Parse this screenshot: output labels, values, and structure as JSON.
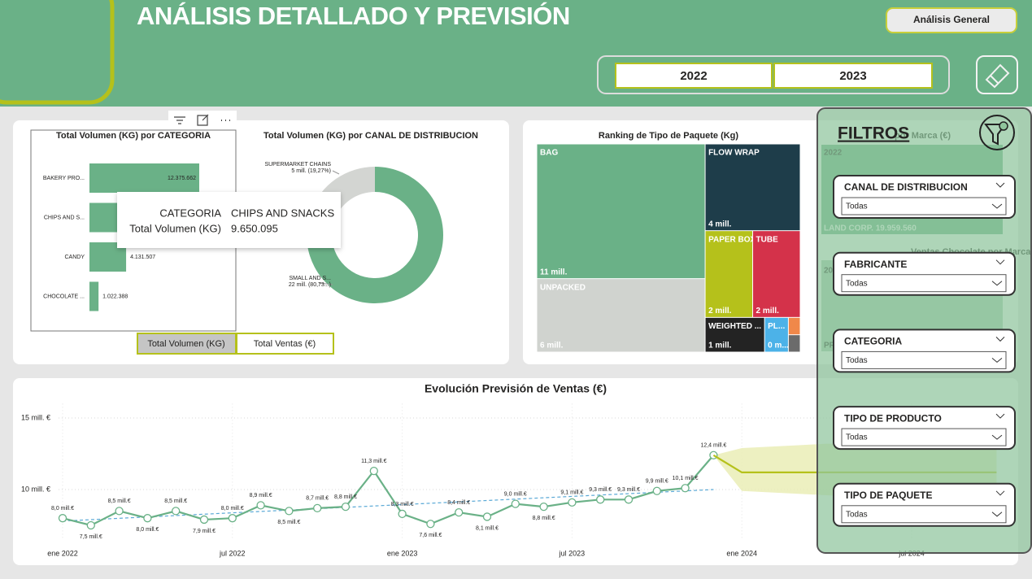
{
  "header": {
    "title": "ANÁLISIS DETALLADO Y PREVISIÓN",
    "nav_button": "Análisis General",
    "year_buttons": [
      "2022",
      "2023"
    ]
  },
  "chart_data": [
    {
      "type": "bar",
      "orientation": "horizontal",
      "title": "Total Volumen (KG) por CATEGORIA",
      "categories": [
        "BAKERY PRO...",
        "CHIPS AND S...",
        "CANDY",
        "CHOCOLATE ..."
      ],
      "values": [
        12375662,
        9650095,
        4131507,
        1022388
      ],
      "value_labels": [
        "12.375.662",
        null,
        "4.131.507",
        "1.022.388"
      ],
      "color": "#6ab187"
    },
    {
      "type": "donut",
      "title": "Total Volumen (KG) por CANAL DE DISTRIBUCION",
      "categories": [
        "SMALL AND S...",
        "SUPERMARKET CHAINS"
      ],
      "values": [
        80.73,
        19.27
      ],
      "value_labels": [
        "22 mill. (80,73...)",
        "5 mill. (19,27%)"
      ],
      "colors": [
        "#6ab187",
        "#d3d5d2"
      ]
    },
    {
      "type": "treemap",
      "title": "Ranking de Tipo de Paquete (Kg)",
      "categories": [
        "BAG",
        "FLOW WRAP",
        "UNPACKED",
        "PAPER BOX",
        "TUBE",
        "WEIGHTED ...",
        "PL...",
        null,
        null
      ],
      "values": [
        11,
        4,
        6,
        2,
        2,
        1,
        0.4,
        0.1,
        0.1
      ],
      "value_labels": [
        "11 mill.",
        "4 mill.",
        "6 mill.",
        "2 mill.",
        "2 mill.",
        "1 mill.",
        "0 m...",
        null,
        null
      ],
      "colors": [
        "#6ab187",
        "#1e3d4a",
        "#d0d3cf",
        "#b5c11b",
        "#d4324a",
        "#232323",
        "#4cb2e8",
        "#f0884a",
        "#6b6b6b"
      ]
    },
    {
      "type": "line",
      "title": "Evolución Previsión de Ventas (€)",
      "categories": [
        "ene 2022",
        null,
        null,
        null,
        null,
        null,
        "jul 2022",
        null,
        null,
        null,
        null,
        null,
        "ene 2023",
        null,
        null,
        null,
        null,
        null,
        "jul 2023",
        null,
        null,
        null,
        null,
        null,
        "ene 2024",
        null,
        null,
        null,
        null,
        null,
        "jul 2024",
        null,
        null,
        null
      ],
      "ylim": [
        6.5,
        16
      ],
      "yticks": [
        {
          "value": 10,
          "label": "10 mill. €"
        },
        {
          "value": 15,
          "label": "15 mill. €"
        }
      ],
      "grid": true,
      "series": [
        {
          "color": "#6ab187",
          "values": [
            8.0,
            7.5,
            8.5,
            8.0,
            8.5,
            7.9,
            8.0,
            8.9,
            8.5,
            8.7,
            8.8,
            11.3,
            8.3,
            7.6,
            8.4,
            8.1,
            9.0,
            8.8,
            9.1,
            9.3,
            9.3,
            9.9,
            10.1,
            12.4,
            null,
            null,
            null,
            null,
            null,
            null,
            null,
            null,
            null,
            null
          ],
          "value_labels": [
            "8,0 mill.€",
            "7,5 mill.€",
            "8,5 mill.€",
            "8,0 mill.€",
            "8,5 mill.€",
            "7,9 mill.€",
            "8,0 mill.€",
            "8,9 mill.€",
            "8,5 mill.€",
            "8,7 mill.€",
            "8,8 mill.€",
            "11,3 mill.€",
            "8,3 mill.€",
            "7,6 mill.€",
            "8,4 mill.€",
            "8,1 mill.€",
            "9,0 mill.€",
            "8,8 mill.€",
            "9,1 mill.€",
            "9,3 mill.€",
            "9,3 mill.€",
            "9,9 mill.€",
            "10,1 mill.€",
            "12,4 mill.€",
            null,
            null,
            null,
            null,
            null,
            null,
            null,
            null,
            null,
            null
          ]
        },
        {
          "color": "#b5c11b",
          "values": [
            null,
            null,
            null,
            null,
            null,
            null,
            null,
            null,
            null,
            null,
            null,
            null,
            null,
            null,
            null,
            null,
            null,
            null,
            null,
            null,
            null,
            null,
            null,
            12.4,
            11.2,
            11.2,
            11.2,
            11.2,
            11.2,
            11.2,
            11.2,
            11.2,
            11.2,
            11.2
          ]
        }
      ],
      "forecast_band": {
        "color": "#e9ecb2",
        "upper": [
          null,
          null,
          null,
          null,
          null,
          null,
          null,
          null,
          null,
          null,
          null,
          null,
          null,
          null,
          null,
          null,
          null,
          null,
          null,
          null,
          null,
          null,
          null,
          12.4,
          12.9,
          13.0,
          13.1,
          13.2,
          13.2,
          13.3,
          13.4,
          13.5,
          13.5,
          13.6
        ],
        "lower": [
          null,
          null,
          null,
          null,
          null,
          null,
          null,
          null,
          null,
          null,
          null,
          null,
          null,
          null,
          null,
          null,
          null,
          null,
          null,
          null,
          null,
          null,
          null,
          12.4,
          9.9,
          9.8,
          9.7,
          9.6,
          9.5,
          9.4,
          9.3,
          9.2,
          9.1,
          9.0
        ]
      },
      "trendline": {
        "color": "#5aa9d6",
        "values": [
          7.8,
          10.0
        ]
      }
    }
  ],
  "tooltip": {
    "rows": [
      [
        "CATEGORIA",
        "CHIPS AND SNACKS"
      ],
      [
        "Total Volumen (KG)",
        "9.650.095"
      ]
    ]
  },
  "measure_buttons": [
    "Total Volumen (KG)",
    "Total Ventas (€)"
  ],
  "hidden_panel": {
    "texts": [
      "por Marca (€)",
      "2022",
      "LAND CORP. 19.959.560",
      "Ventas Chocolate por Marca (€)",
      "20",
      "PR"
    ]
  },
  "filters": {
    "title": "FILTROS",
    "slicers": [
      {
        "label": "CANAL DE DISTRIBUCION",
        "value": "Todas"
      },
      {
        "label": "FABRICANTE",
        "value": "Todas"
      },
      {
        "label": "CATEGORIA",
        "value": "Todas"
      },
      {
        "label": "TIPO DE PRODUCTO",
        "value": "Todas"
      },
      {
        "label": "TIPO DE PAQUETE",
        "value": "Todas"
      }
    ]
  }
}
